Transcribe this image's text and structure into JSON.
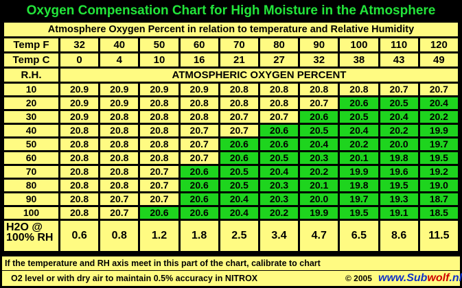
{
  "title": "Oxygen Compensation Chart for High Moisture in the Atmosphere",
  "subtitle": "Atmosphere Oxygen Percent in relation to temperature and Relative Humidity",
  "temp_f_label": "Temp F",
  "temp_c_label": "Temp C",
  "temp_f": [
    "32",
    "40",
    "50",
    "60",
    "70",
    "80",
    "90",
    "100",
    "110",
    "120"
  ],
  "temp_c": [
    "0",
    "4",
    "10",
    "16",
    "21",
    "27",
    "32",
    "38",
    "43",
    "49"
  ],
  "rh_label": "R.H.",
  "atm_label": "ATMOSPHERIC OXYGEN PERCENT",
  "rows": [
    {
      "rh": "10",
      "values": [
        "20.9",
        "20.9",
        "20.9",
        "20.9",
        "20.8",
        "20.8",
        "20.8",
        "20.8",
        "20.7",
        "20.7"
      ],
      "green_from": 10
    },
    {
      "rh": "20",
      "values": [
        "20.9",
        "20.9",
        "20.8",
        "20.8",
        "20.8",
        "20.8",
        "20.7",
        "20.6",
        "20.5",
        "20.4"
      ],
      "green_from": 7
    },
    {
      "rh": "30",
      "values": [
        "20.9",
        "20.8",
        "20.8",
        "20.8",
        "20.7",
        "20.7",
        "20.6",
        "20.5",
        "20.4",
        "20.2"
      ],
      "green_from": 6
    },
    {
      "rh": "40",
      "values": [
        "20.8",
        "20.8",
        "20.8",
        "20.7",
        "20.7",
        "20.6",
        "20.5",
        "20.4",
        "20.2",
        "19.9"
      ],
      "green_from": 5
    },
    {
      "rh": "50",
      "values": [
        "20.8",
        "20.8",
        "20.8",
        "20.7",
        "20.6",
        "20.6",
        "20.4",
        "20.2",
        "20.0",
        "19.7"
      ],
      "green_from": 4
    },
    {
      "rh": "60",
      "values": [
        "20.8",
        "20.8",
        "20.8",
        "20.7",
        "20.6",
        "20.5",
        "20.3",
        "20.1",
        "19.8",
        "19.5"
      ],
      "green_from": 4
    },
    {
      "rh": "70",
      "values": [
        "20.8",
        "20.8",
        "20.7",
        "20.6",
        "20.5",
        "20.4",
        "20.2",
        "19.9",
        "19.6",
        "19.2"
      ],
      "green_from": 3
    },
    {
      "rh": "80",
      "values": [
        "20.8",
        "20.8",
        "20.7",
        "20.6",
        "20.5",
        "20.3",
        "20.1",
        "19.8",
        "19.5",
        "19.0"
      ],
      "green_from": 3
    },
    {
      "rh": "90",
      "values": [
        "20.8",
        "20.7",
        "20.7",
        "20.6",
        "20.4",
        "20.3",
        "20.0",
        "19.7",
        "19.3",
        "18.7"
      ],
      "green_from": 3
    },
    {
      "rh": "100",
      "values": [
        "20.8",
        "20.7",
        "20.6",
        "20.6",
        "20.4",
        "20.2",
        "19.9",
        "19.5",
        "19.1",
        "18.5"
      ],
      "green_from": 2
    }
  ],
  "h2o_label": "H2O @ 100% RH",
  "h2o_values": [
    "0.6",
    "0.8",
    "1.2",
    "1.8",
    "2.5",
    "3.4",
    "4.7",
    "6.5",
    "8.6",
    "11.5"
  ],
  "footer_line1": "If the temperature and RH axis meet in this part of the chart, calibrate to chart",
  "footer_line2": "O2 level or with dry air to maintain 0.5% accuracy in NITROX",
  "copyright": "© 2005",
  "brand_prefix": "www.",
  "brand_sub": "Sub",
  "brand_wolf": "wolf",
  "brand_suffix": ".nl",
  "colors": {
    "background": "#000000",
    "cell": "#fffb82",
    "highlight": "#1ed41e",
    "title": "#22e53a"
  }
}
